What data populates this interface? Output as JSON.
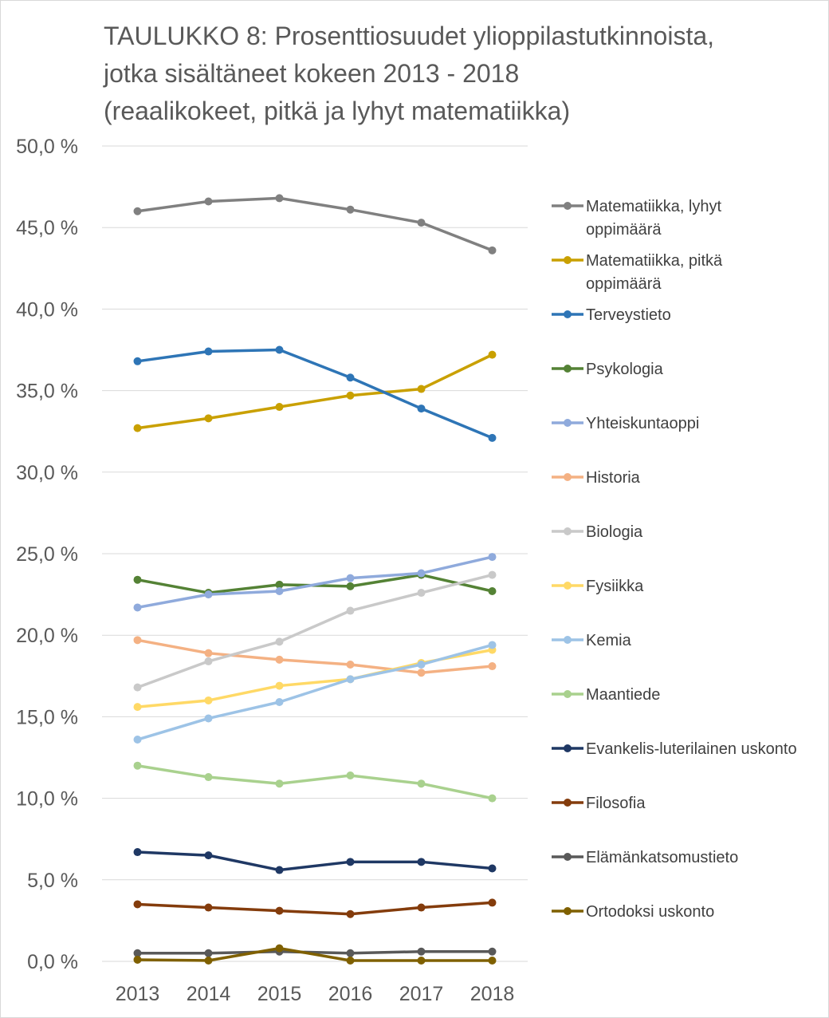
{
  "chart_data": {
    "type": "line",
    "title": [
      "TAULUKKO 8: Prosenttiosuudet ylioppilastutkinnoista,",
      "jotka sisältäneet kokeen 2013 - 2018",
      "(reaalikokeet, pitkä ja lyhyt matematiikka)"
    ],
    "xlabel": "",
    "ylabel": "",
    "x": [
      "2013",
      "2014",
      "2015",
      "2016",
      "2017",
      "2018"
    ],
    "ylim": [
      0,
      50
    ],
    "yticks": [
      "0,0 %",
      "5,0 %",
      "10,0 %",
      "15,0 %",
      "20,0 %",
      "25,0 %",
      "30,0 %",
      "35,0 %",
      "40,0 %",
      "45,0 %",
      "50,0 %"
    ],
    "grid": true,
    "legend_position": "right",
    "series": [
      {
        "name": [
          "Matematiikka, lyhyt",
          "oppimäärä"
        ],
        "color": "#808080",
        "values": [
          46.0,
          46.6,
          46.8,
          46.1,
          45.3,
          43.6
        ]
      },
      {
        "name": [
          "Matematiikka, pitkä",
          "oppimäärä"
        ],
        "color": "#C9A000",
        "values": [
          32.7,
          33.3,
          34.0,
          34.7,
          35.1,
          37.2
        ]
      },
      {
        "name": [
          "Terveystieto"
        ],
        "color": "#2E75B6",
        "values": [
          36.8,
          37.4,
          37.5,
          35.8,
          33.9,
          32.1
        ]
      },
      {
        "name": [
          "Psykologia"
        ],
        "color": "#548235",
        "values": [
          23.4,
          22.6,
          23.1,
          23.0,
          23.7,
          22.7
        ]
      },
      {
        "name": [
          "Yhteiskuntaoppi"
        ],
        "color": "#8FAADC",
        "values": [
          21.7,
          22.5,
          22.7,
          23.5,
          23.8,
          24.8
        ]
      },
      {
        "name": [
          "Historia"
        ],
        "color": "#F4B183",
        "values": [
          19.7,
          18.9,
          18.5,
          18.2,
          17.7,
          18.1
        ]
      },
      {
        "name": [
          "Biologia"
        ],
        "color": "#C9C9C9",
        "values": [
          16.8,
          18.4,
          19.6,
          21.5,
          22.6,
          23.7
        ]
      },
      {
        "name": [
          "Fysiikka"
        ],
        "color": "#FFD966",
        "values": [
          15.6,
          16.0,
          16.9,
          17.3,
          18.3,
          19.1
        ]
      },
      {
        "name": [
          "Kemia"
        ],
        "color": "#9DC3E6",
        "values": [
          13.6,
          14.9,
          15.9,
          17.3,
          18.2,
          19.4
        ]
      },
      {
        "name": [
          "Maantiede"
        ],
        "color": "#A9D18E",
        "values": [
          12.0,
          11.3,
          10.9,
          11.4,
          10.9,
          10.0
        ]
      },
      {
        "name": [
          "Evankelis-luterilainen uskonto"
        ],
        "color": "#1F3864",
        "values": [
          6.7,
          6.5,
          5.6,
          6.1,
          6.1,
          5.7
        ]
      },
      {
        "name": [
          "Filosofia"
        ],
        "color": "#843C0C",
        "values": [
          3.5,
          3.3,
          3.1,
          2.9,
          3.3,
          3.6
        ]
      },
      {
        "name": [
          "Elämänkatsomustieto"
        ],
        "color": "#595959",
        "values": [
          0.5,
          0.5,
          0.6,
          0.5,
          0.6,
          0.6
        ]
      },
      {
        "name": [
          "Ortodoksi uskonto"
        ],
        "color": "#7F6000",
        "values": [
          0.1,
          0.05,
          0.8,
          0.05,
          0.05,
          0.05
        ]
      }
    ]
  }
}
